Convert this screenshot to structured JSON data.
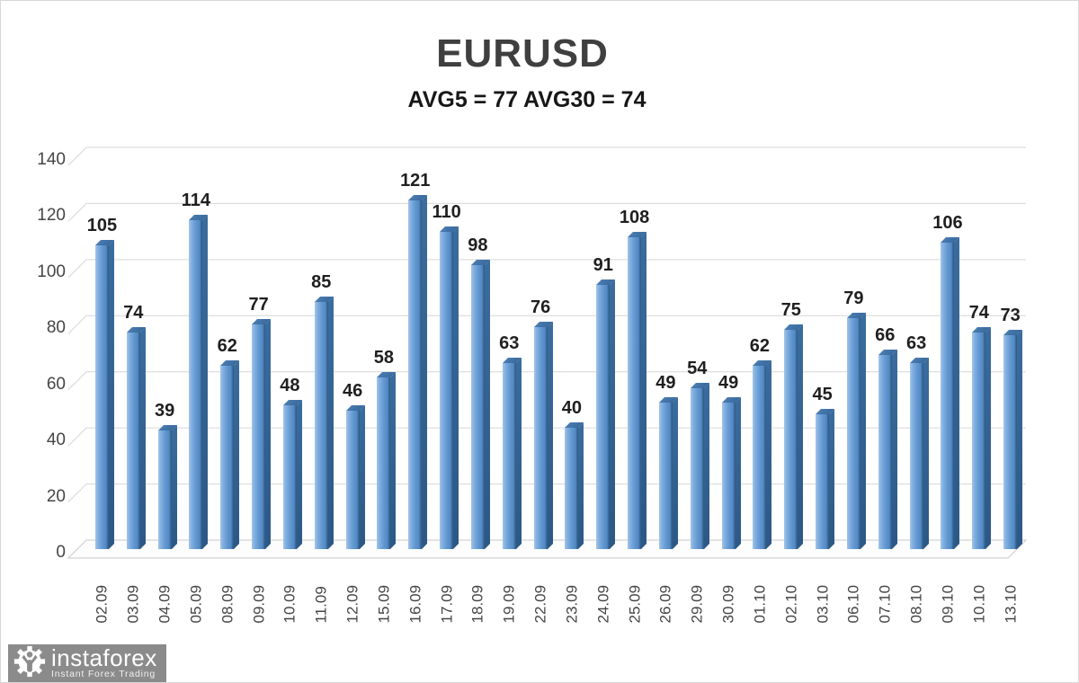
{
  "chart_data": {
    "type": "bar",
    "style": "3d",
    "title": "EURUSD",
    "subtitle": "AVG5 = 77 AVG30 = 74",
    "categories": [
      "02.09",
      "03.09",
      "04.09",
      "05.09",
      "08.09",
      "09.09",
      "10.09",
      "11.09",
      "12.09",
      "15.09",
      "16.09",
      "17.09",
      "18.09",
      "19.09",
      "22.09",
      "23.09",
      "24.09",
      "25.09",
      "26.09",
      "29.09",
      "30.09",
      "01.10",
      "02.10",
      "03.10",
      "06.10",
      "07.10",
      "08.10",
      "09.10",
      "10.10",
      "13.10"
    ],
    "values": [
      105,
      74,
      39,
      114,
      62,
      77,
      48,
      85,
      46,
      58,
      121,
      110,
      98,
      63,
      76,
      40,
      91,
      108,
      49,
      54,
      49,
      62,
      75,
      45,
      79,
      66,
      63,
      106,
      74,
      73
    ],
    "xlabel": "",
    "ylabel": "",
    "ylim": [
      0,
      140
    ],
    "yticks": [
      0,
      20,
      40,
      60,
      80,
      100,
      120,
      140
    ],
    "grid": true,
    "legend": "none",
    "data_labels": true,
    "colors": {
      "bar_light": "#a4c6e6",
      "bar_mid": "#6096cf",
      "bar_dark": "#2f5c88",
      "gridline": "#d6d6d6",
      "floor_stroke": "#c9c9c9",
      "value_label": "#1f1f1f",
      "axis_label": "#454545",
      "title": "#3f3f3f"
    }
  },
  "watermark": {
    "brand": "instaforex",
    "tagline": "Instant Forex Trading"
  }
}
